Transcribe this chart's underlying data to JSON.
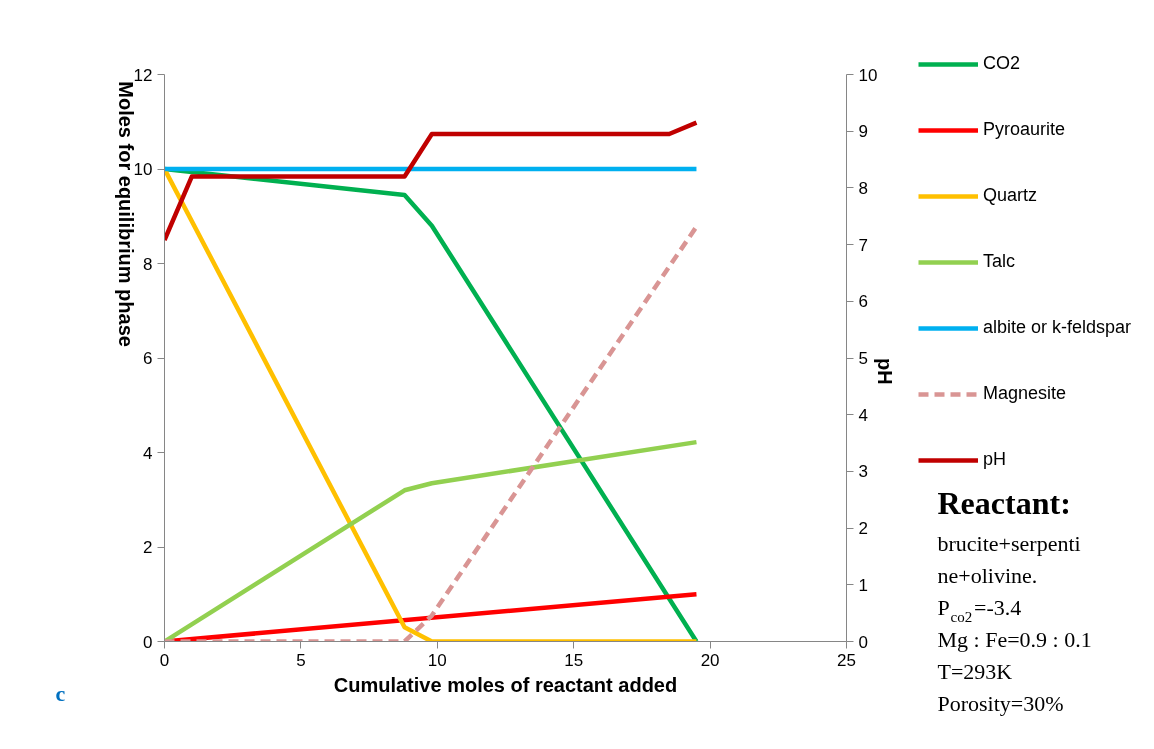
{
  "chart_data": {
    "type": "line",
    "xlabel": "Cumulative moles of reactant added",
    "ylabel": "Moles  for  equilibrium phase",
    "y2label": "pH",
    "xlim": [
      0,
      25
    ],
    "xticks": [
      0,
      5,
      10,
      15,
      20,
      25
    ],
    "ylim": [
      0,
      12
    ],
    "yticks": [
      0,
      2,
      4,
      6,
      8,
      10,
      12
    ],
    "y2lim": [
      0,
      10
    ],
    "y2ticks": [
      0,
      1,
      2,
      3,
      4,
      5,
      6,
      7,
      8,
      9,
      10
    ],
    "grid": false,
    "legend": "right",
    "line_style": "solid",
    "series": [
      {
        "name": "CO2",
        "color": "#00b050",
        "x": [
          0,
          8.8,
          9.8,
          19.5
        ],
        "values": [
          10,
          9.45,
          8.8,
          0
        ]
      },
      {
        "name": "Pyroaurite",
        "color": "#ff0000",
        "x": [
          0,
          19.5
        ],
        "values": [
          0,
          1.0
        ]
      },
      {
        "name": "Quartz",
        "color": "#ffc000",
        "x": [
          0,
          8.8,
          9.8,
          19.5
        ],
        "values": [
          10,
          0.3,
          0,
          0
        ]
      },
      {
        "name": "Talc",
        "color": "#92d050",
        "x": [
          0,
          8.8,
          9.8,
          19.5
        ],
        "values": [
          0,
          3.2,
          3.35,
          4.22
        ]
      },
      {
        "name": "albite or k-feldspar",
        "color": "#00b0f0",
        "x": [
          0,
          19.5
        ],
        "values": [
          10,
          10
        ]
      },
      {
        "name": "Magnesite",
        "color": "#d99594",
        "line_style": "dashed",
        "x": [
          0,
          8.8,
          9.8,
          19.5
        ],
        "values": [
          0,
          0,
          0.55,
          8.78
        ]
      },
      {
        "name": "pH",
        "color": "#c00000",
        "axis": "y2",
        "x": [
          0,
          1,
          8.8,
          9.8,
          18.5,
          19.5
        ],
        "values": [
          7.08,
          8.2,
          8.2,
          8.95,
          8.95,
          9.15
        ]
      }
    ],
    "annotations": [
      "c",
      "Reactant:",
      "brucite+serpenti",
      "ne+olivine.",
      "P$_{co2}$=-3.4",
      "Mg : Fe=0.9 : 0.1",
      "T=293K",
      "Porosity=30%"
    ]
  }
}
